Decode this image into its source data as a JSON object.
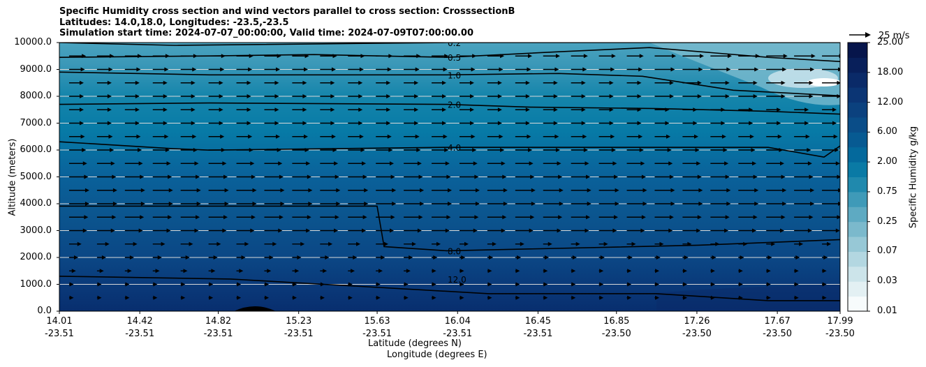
{
  "titles": [
    "Specific Humidity cross section and wind vectors parallel to cross section: CrosssectionB",
    "Latitudes: 14.0,18.0, Longitudes: -23.5,-23.5",
    "Simulation start time: 2024-07-07_00:00:00, Valid time: 2024-07-09T07:00:00.00"
  ],
  "chart_data": {
    "type": "heatmap",
    "title": "Specific Humidity cross section and wind vectors parallel to cross section: CrosssectionB",
    "ylabel": "Altitude (meters)",
    "xlabel_lat": "Latitude (degrees N)",
    "xlabel_lon": "Longitude (degrees E)",
    "ylim": [
      0,
      10000
    ],
    "yticks": [
      "0.0",
      "1000.0",
      "2000.0",
      "3000.0",
      "4000.0",
      "5000.0",
      "6000.0",
      "7000.0",
      "8000.0",
      "9000.0",
      "10000.0"
    ],
    "xticks": [
      {
        "lat": "14.01",
        "lon": "-23.51"
      },
      {
        "lat": "14.42",
        "lon": "-23.51"
      },
      {
        "lat": "14.82",
        "lon": "-23.51"
      },
      {
        "lat": "15.23",
        "lon": "-23.51"
      },
      {
        "lat": "15.63",
        "lon": "-23.51"
      },
      {
        "lat": "16.04",
        "lon": "-23.51"
      },
      {
        "lat": "16.45",
        "lon": "-23.51"
      },
      {
        "lat": "16.85",
        "lon": "-23.50"
      },
      {
        "lat": "17.26",
        "lon": "-23.50"
      },
      {
        "lat": "17.67",
        "lon": "-23.50"
      },
      {
        "lat": "17.99",
        "lon": "-23.50"
      }
    ],
    "colorbar": {
      "label": "Specific Humidity g/kg",
      "ticks": [
        "0.01",
        "0.03",
        "0.07",
        "0.25",
        "0.75",
        "2.00",
        "6.00",
        "12.00",
        "18.00",
        "25.00"
      ],
      "colors": [
        "#f7fbfc",
        "#e3f0f3",
        "#cce4ea",
        "#b3d7e1",
        "#97c8d6",
        "#7bb9cc",
        "#5eaac2",
        "#3f9ab8",
        "#2089ad",
        "#0a7aa5",
        "#04699c",
        "#075a92",
        "#0a4d88",
        "#0b417e",
        "#0b3574",
        "#0a2a68",
        "#081f5a",
        "#06154b"
      ]
    },
    "contours": [
      {
        "label": "0.2",
        "altitude_m": 10000
      },
      {
        "label": "0.5",
        "altitude_m": 9450
      },
      {
        "label": "1.0",
        "altitude_m": 8850
      },
      {
        "label": "2.0",
        "altitude_m": 7700
      },
      {
        "label": "4.0",
        "altitude_m": 6100
      },
      {
        "label": "8.0",
        "altitude_m": 2300
      },
      {
        "label": "12.0",
        "altitude_m": 600
      }
    ],
    "wind_reference": {
      "label": "25 m/s",
      "speed": 25
    },
    "wind_levels_m": [
      9500,
      9000,
      8500,
      8000,
      7500,
      7000,
      6500,
      6000,
      5500,
      5000,
      4500,
      4000,
      3500,
      3000,
      2500,
      2000,
      1500,
      1000,
      500
    ],
    "wind_speed_profile_ms": [
      12,
      11,
      10,
      10,
      10,
      10,
      11,
      12,
      13,
      14,
      15,
      15,
      14,
      13,
      8,
      5,
      3,
      1,
      1
    ]
  }
}
